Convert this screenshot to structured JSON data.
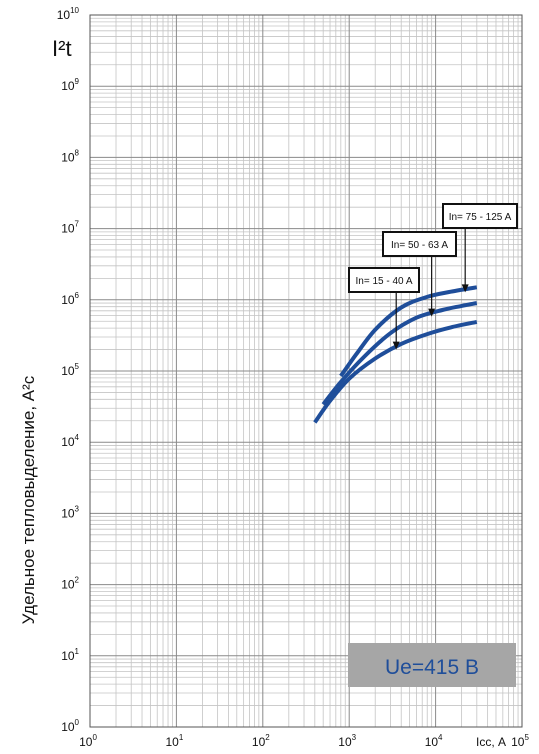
{
  "chart_data": {
    "type": "line",
    "y_unit_label": "I²t",
    "ylabel": "Удельное тепловыделение, А²с",
    "xlabel": "Icc, А",
    "x_scale": "log",
    "y_scale": "log",
    "xlim": [
      1,
      100000
    ],
    "ylim": [
      1,
      10000000000
    ],
    "grid": true,
    "x_ticks": [
      "10",
      "10",
      "10",
      "10",
      "10",
      "10"
    ],
    "x_tick_exps": [
      "0",
      "1",
      "2",
      "3",
      "4",
      "5"
    ],
    "y_ticks": [
      "10",
      "10",
      "10",
      "10",
      "10",
      "10",
      "10",
      "10",
      "10",
      "10",
      "10"
    ],
    "y_tick_exps": [
      "0",
      "1",
      "2",
      "3",
      "4",
      "5",
      "6",
      "7",
      "8",
      "9",
      "10"
    ],
    "line_color": "#1f4e9a",
    "series": [
      {
        "name": "In= 15 - 40 A",
        "x": [
          400,
          600,
          1000,
          2000,
          4000,
          8000,
          15000,
          30000
        ],
        "y": [
          19000,
          38000,
          78000,
          150000,
          240000,
          330000,
          410000,
          490000
        ]
      },
      {
        "name": "In= 50 - 63 A",
        "x": [
          500,
          800,
          1500,
          3000,
          6000,
          12000,
          20000,
          30000
        ],
        "y": [
          34000,
          70000,
          160000,
          340000,
          560000,
          720000,
          820000,
          900000
        ]
      },
      {
        "name": "In= 75 - 125 A",
        "x": [
          800,
          1200,
          2000,
          4000,
          8000,
          15000,
          30000
        ],
        "y": [
          85000,
          170000,
          380000,
          780000,
          1100000,
          1300000,
          1500000
        ]
      }
    ],
    "annotations": [
      {
        "text": "In= 15 - 40 A",
        "target_x": 3500,
        "target_y": 200000
      },
      {
        "text": "In= 50 - 63 A",
        "target_x": 9000,
        "target_y": 580000
      },
      {
        "text": "In= 75 - 125 A",
        "target_x": 22000,
        "target_y": 1270000
      }
    ],
    "badge": {
      "text": "Ue=415 В",
      "bg": "#a6a6a6",
      "color": "#1f4e9a"
    }
  }
}
